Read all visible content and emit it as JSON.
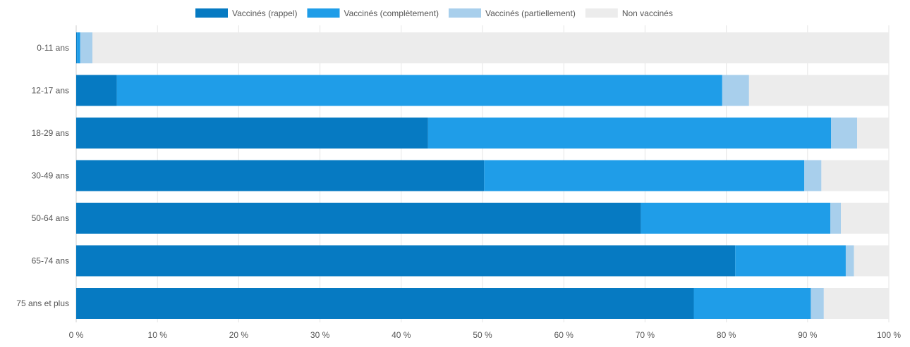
{
  "chart_data": {
    "type": "bar",
    "orientation": "horizontal",
    "stacked": true,
    "title": "",
    "xlabel": "",
    "ylabel": "",
    "xlim": [
      0,
      100
    ],
    "x_ticks": [
      0,
      10,
      20,
      30,
      40,
      50,
      60,
      70,
      80,
      90,
      100
    ],
    "x_tick_labels": [
      "0 %",
      "10 %",
      "20 %",
      "30 %",
      "40 %",
      "50 %",
      "60 %",
      "70 %",
      "80 %",
      "90 %",
      "100 %"
    ],
    "grid": true,
    "legend_position": "top-center",
    "categories": [
      "0-11 ans",
      "12-17 ans",
      "18-29 ans",
      "30-49 ans",
      "50-64 ans",
      "65-74 ans",
      "75 ans et plus"
    ],
    "series": [
      {
        "name": "Vaccinés (rappel)",
        "color": "#067ac2",
        "values": [
          0.1,
          5.0,
          43.3,
          50.2,
          69.5,
          81.1,
          76.0
        ]
      },
      {
        "name": "Vaccinés (complètement)",
        "color": "#1f9de8",
        "values": [
          0.4,
          74.5,
          49.6,
          39.4,
          23.3,
          13.6,
          14.4
        ]
      },
      {
        "name": "Vaccinés (partiellement)",
        "color": "#a8cfec",
        "values": [
          1.5,
          3.3,
          3.2,
          2.1,
          1.3,
          1.0,
          1.6
        ]
      },
      {
        "name": "Non vaccinés",
        "color": "#ececec",
        "values": [
          98.0,
          17.2,
          3.9,
          8.3,
          5.9,
          4.3,
          8.0
        ]
      }
    ]
  }
}
